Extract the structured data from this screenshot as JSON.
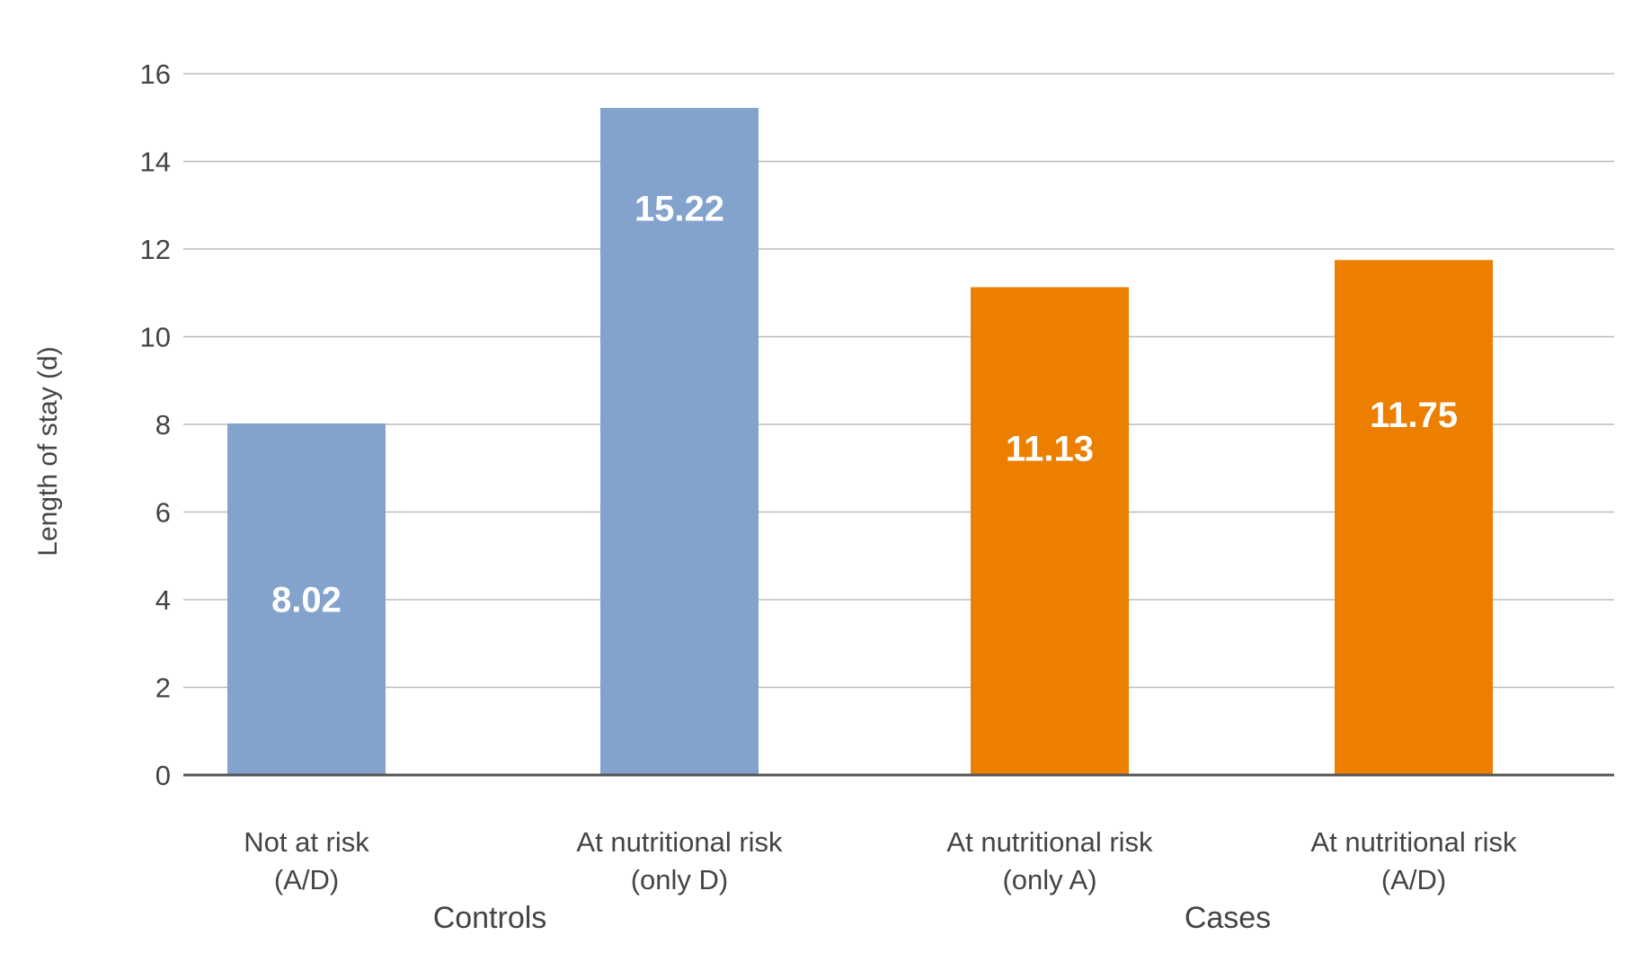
{
  "chart_data": {
    "type": "bar",
    "title": "",
    "xlabel": "",
    "ylabel": "Length of stay (d)",
    "ylim": [
      0,
      16
    ],
    "yticks": [
      "0",
      "2",
      "4",
      "6",
      "8",
      "10",
      "12",
      "14",
      "16"
    ],
    "grid": true,
    "categories": [
      {
        "line1": "Not at risk",
        "line2": "(A/D)"
      },
      {
        "line1": "At nutritional risk",
        "line2": "(only D)"
      },
      {
        "line1": "At nutritional risk",
        "line2": "(only A)"
      },
      {
        "line1": "At nutritional risk",
        "line2": "(A/D)"
      }
    ],
    "values": [
      8.02,
      15.22,
      11.13,
      11.75
    ],
    "value_labels": [
      "8.02",
      "15.22",
      "11.13",
      "11.75"
    ],
    "groups": [
      {
        "label": "Controls",
        "categories": [
          0,
          1
        ],
        "color": "#83A3CD"
      },
      {
        "label": "Cases",
        "categories": [
          2,
          3
        ],
        "color": "#EC7F00"
      }
    ],
    "colors": {
      "controls": "#83A3CD",
      "cases": "#EC7F00",
      "grid": "#BBBBBB",
      "baseline": "#555555",
      "text": "#444444",
      "data_label": "#FFFFFF"
    }
  }
}
